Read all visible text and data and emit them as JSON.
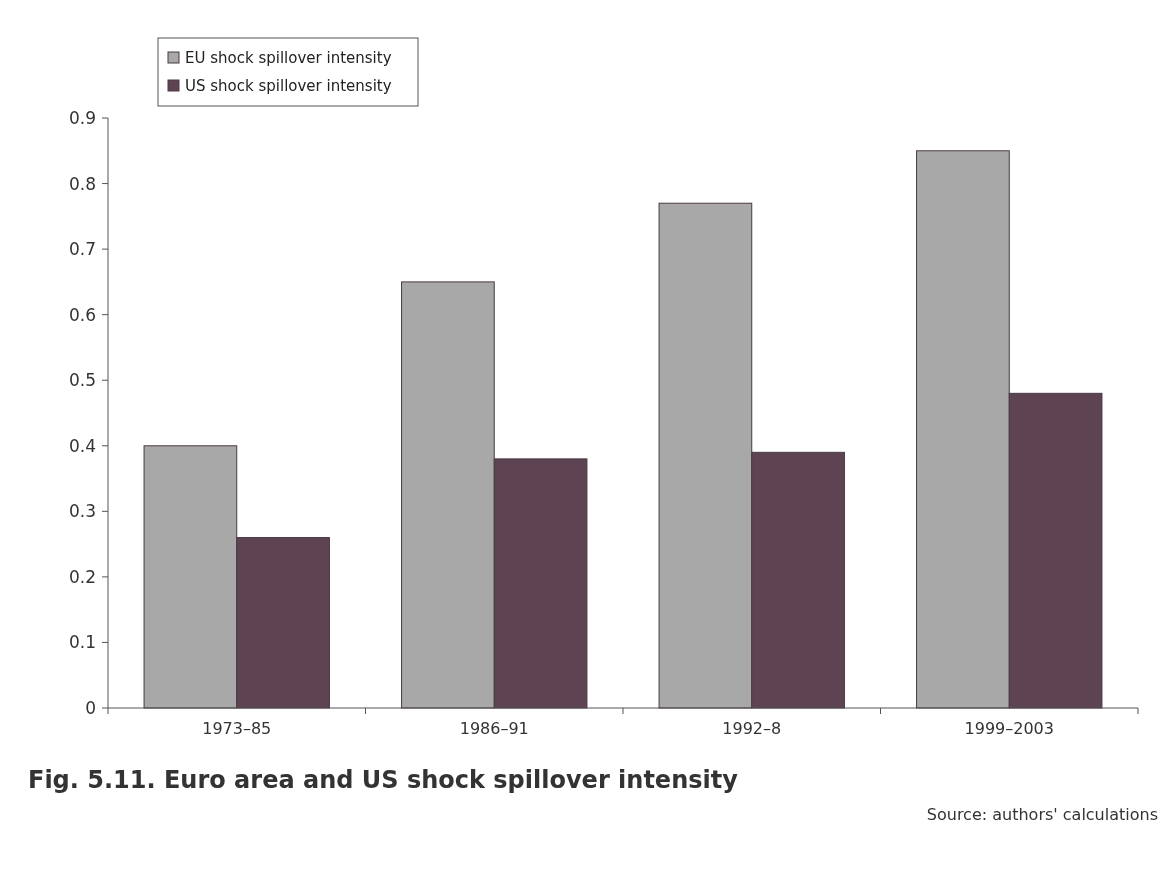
{
  "chart_data": {
    "type": "bar",
    "title": "Fig. 5.11. Euro area and US shock spillover intensity",
    "annotations": [
      "Source: authors' calculations"
    ],
    "categories": [
      "1973–85",
      "1986–91",
      "1992–8",
      "1999–2003"
    ],
    "series": [
      {
        "name": "EU shock spillover intensity",
        "color": "#a8a8a8",
        "values": [
          0.4,
          0.65,
          0.77,
          0.85
        ]
      },
      {
        "name": "US shock spillover intensity",
        "color": "#5e4352",
        "values": [
          0.26,
          0.38,
          0.39,
          0.48
        ]
      }
    ],
    "ylim": [
      0,
      0.9
    ],
    "yticks": [
      0,
      0.1,
      0.2,
      0.3,
      0.4,
      0.5,
      0.6,
      0.7,
      0.8,
      0.9
    ],
    "legend": "top left"
  }
}
